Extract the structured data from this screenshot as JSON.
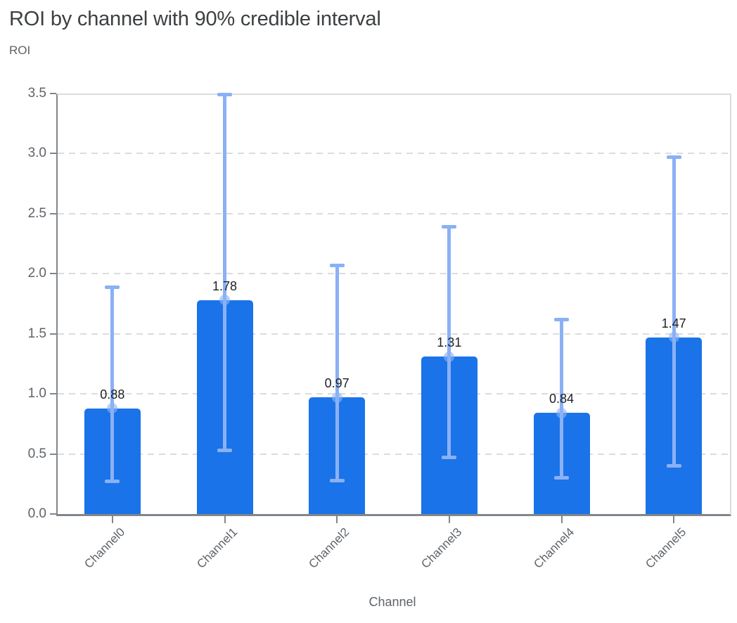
{
  "header": {
    "title": "ROI by channel with 90% credible interval"
  },
  "chart_data": {
    "type": "bar",
    "title": "ROI by channel with 90% credible interval",
    "ylabel": "ROI",
    "xlabel": "Channel",
    "categories": [
      "Channel0",
      "Channel1",
      "Channel2",
      "Channel3",
      "Channel4",
      "Channel5"
    ],
    "values": [
      0.88,
      1.78,
      0.97,
      1.31,
      0.84,
      1.47
    ],
    "data_labels": [
      "0.88",
      "1.78",
      "0.97",
      "1.31",
      "0.84",
      "1.47"
    ],
    "error_low": [
      0.27,
      0.53,
      0.28,
      0.47,
      0.3,
      0.4
    ],
    "error_high": [
      1.89,
      3.49,
      2.07,
      2.39,
      1.62,
      2.97
    ],
    "error_interval": "90% credible interval",
    "ylim": [
      0,
      3.5
    ],
    "yticks": [
      0.0,
      0.5,
      1.0,
      1.5,
      2.0,
      2.5,
      3.0,
      3.5
    ],
    "ytick_labels": [
      "0.0",
      "0.5",
      "1.0",
      "1.5",
      "2.0",
      "2.5",
      "3.0",
      "3.5"
    ],
    "grid": "horizontal-dashed",
    "legend": "none"
  },
  "colors": {
    "bar": "#1a73e8",
    "error_bar": "#8ab1f5",
    "mean_marker": "rgba(138,177,245,0.62)",
    "title_text": "#3c4043",
    "axis_title_text": "#5f6368",
    "tick_label_text": "#5f6368",
    "data_label_text": "#202124",
    "gridline": "#dadce0",
    "axis_line": "#80868b",
    "plot_border": "#dadce0"
  }
}
